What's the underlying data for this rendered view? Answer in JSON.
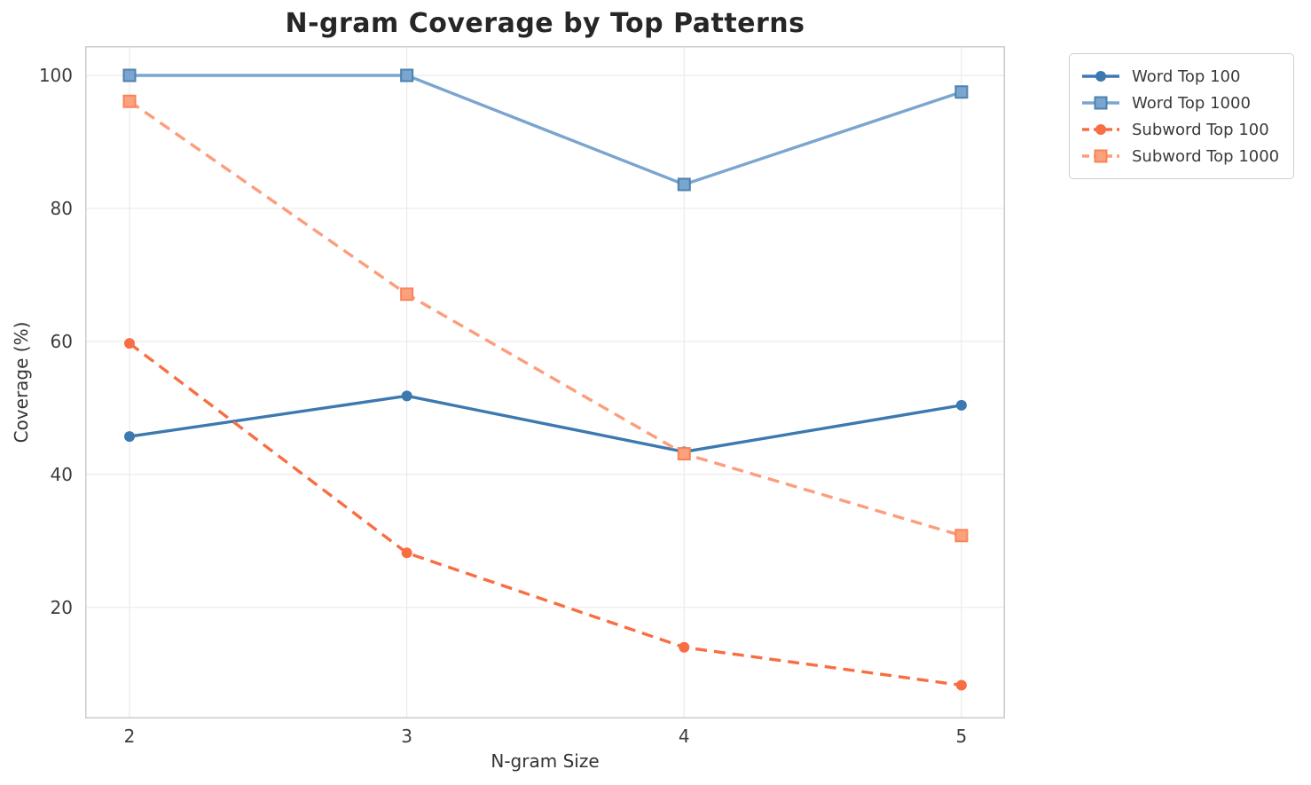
{
  "chart_data": {
    "type": "line",
    "title": "N-gram Coverage by Top Patterns",
    "xlabel": "N-gram Size",
    "ylabel": "Coverage (%)",
    "x": [
      2,
      3,
      4,
      5
    ],
    "xticks": [
      "2",
      "3",
      "4",
      "5"
    ],
    "xtick_values": [
      2,
      3,
      4,
      5
    ],
    "yticks": [
      "20",
      "40",
      "60",
      "80",
      "100"
    ],
    "ytick_values": [
      20,
      40,
      60,
      80,
      100
    ],
    "xlim": [
      1.84,
      5.157
    ],
    "ylim": [
      3.3,
      104.4
    ],
    "grid": true,
    "grid_color": "#ebebeb",
    "spine_color": "#cccccc",
    "legend_position": "upper right, outside plot",
    "series": [
      {
        "name": "Word Top 100",
        "values": [
          45.7,
          51.8,
          43.4,
          50.4
        ],
        "color": "#3c79b0",
        "line_style": "solid",
        "marker": "circle",
        "marker_fill": "#3c79b0",
        "marker_edge": "#3c79b0"
      },
      {
        "name": "Word Top 1000",
        "values": [
          100.0,
          100.0,
          83.6,
          97.5
        ],
        "color": "#7aa5cf",
        "line_style": "solid",
        "marker": "square",
        "marker_fill": "#7aa5cf",
        "marker_edge": "#4d80b0"
      },
      {
        "name": "Subword Top 100",
        "values": [
          59.7,
          28.2,
          14.0,
          8.3
        ],
        "color": "#f86e42",
        "line_style": "dashed",
        "marker": "circle",
        "marker_fill": "#f86e42",
        "marker_edge": "#f86e42"
      },
      {
        "name": "Subword Top 1000",
        "values": [
          96.1,
          67.1,
          43.1,
          30.8
        ],
        "color": "#fc9d7b",
        "line_style": "dashed",
        "marker": "square",
        "marker_fill": "#fca17e",
        "marker_edge": "#fa8357"
      }
    ]
  }
}
